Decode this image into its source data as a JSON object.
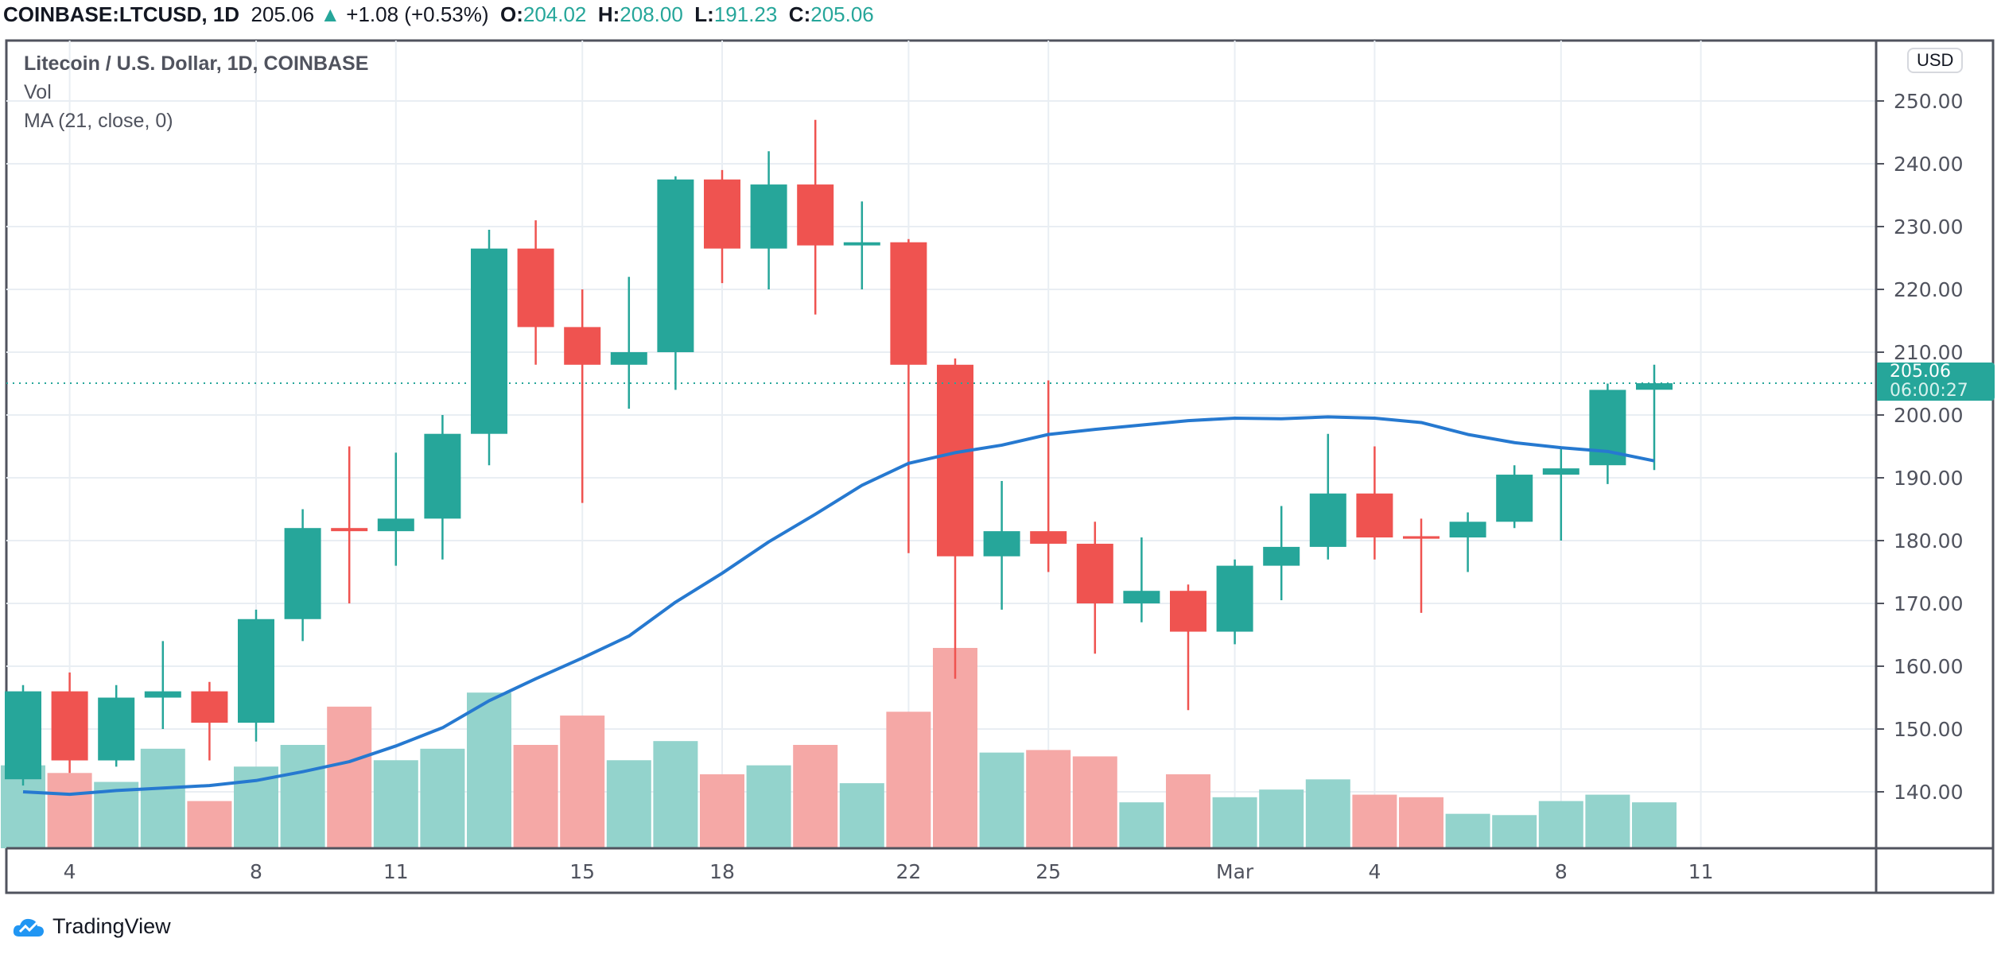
{
  "header": {
    "symbol": "COINBASE:LTCUSD, 1D",
    "last": "205.06",
    "change": "+1.08 (+0.53%)",
    "o_label": "O:",
    "o": "204.02",
    "h_label": "H:",
    "h": "208.00",
    "l_label": "L:",
    "l": "191.23",
    "c_label": "C:",
    "c": "205.06"
  },
  "legend": {
    "title": "Litecoin / U.S. Dollar, 1D, COINBASE",
    "vol": "Vol",
    "ma": "MA (21, close, 0)"
  },
  "currency": "USD",
  "price_tag": {
    "price": "205.06",
    "countdown": "06:00:27"
  },
  "branding": "TradingView",
  "colors": {
    "up": "#26a69a",
    "down": "#ef5350",
    "vol_up": "#93d3cc",
    "vol_down": "#f5a8a6",
    "ma": "#2679d0",
    "grid": "#e9eef3"
  },
  "chart_data": {
    "type": "candlestick",
    "title": "Litecoin / U.S. Dollar, 1D, COINBASE",
    "ylim": [
      132,
      254
    ],
    "yticks": [
      "250.00",
      "240.00",
      "230.00",
      "220.00",
      "210.00",
      "200.00",
      "190.00",
      "180.00",
      "170.00",
      "160.00",
      "150.00",
      "140.00"
    ],
    "xticks": [
      {
        "index": 1,
        "label": "4"
      },
      {
        "index": 5,
        "label": "8"
      },
      {
        "index": 8,
        "label": "11"
      },
      {
        "index": 12,
        "label": "15"
      },
      {
        "index": 15,
        "label": "18"
      },
      {
        "index": 19,
        "label": "22"
      },
      {
        "index": 22,
        "label": "25"
      },
      {
        "index": 26,
        "label": "Mar"
      },
      {
        "index": 29,
        "label": "4"
      },
      {
        "index": 33,
        "label": "8"
      },
      {
        "index": 36,
        "label": "11"
      }
    ],
    "dates": [
      "Feb 3",
      "Feb 4",
      "Feb 5",
      "Feb 6",
      "Feb 7",
      "Feb 8",
      "Feb 9",
      "Feb 10",
      "Feb 11",
      "Feb 12",
      "Feb 13",
      "Feb 14",
      "Feb 15",
      "Feb 16",
      "Feb 17",
      "Feb 18",
      "Feb 19",
      "Feb 20",
      "Feb 21",
      "Feb 22",
      "Feb 23",
      "Feb 24",
      "Feb 25",
      "Feb 26",
      "Feb 27",
      "Feb 28",
      "Mar 1",
      "Mar 2",
      "Mar 3",
      "Mar 4",
      "Mar 5",
      "Mar 6",
      "Mar 7",
      "Mar 8",
      "Mar 9",
      "Mar 10"
    ],
    "ohlc": [
      [
        142,
        157,
        141,
        156
      ],
      [
        156,
        159,
        143,
        145
      ],
      [
        145,
        157,
        144,
        155
      ],
      [
        155,
        164,
        150,
        156
      ],
      [
        156,
        157.5,
        145,
        151
      ],
      [
        151,
        169,
        148,
        167.5
      ],
      [
        167.5,
        185,
        164,
        182
      ],
      [
        182,
        195,
        170,
        181.5
      ],
      [
        181.5,
        194,
        176,
        183.5
      ],
      [
        183.5,
        200,
        177,
        197
      ],
      [
        197,
        229.5,
        192,
        226.5
      ],
      [
        226.5,
        231,
        208,
        214
      ],
      [
        214,
        220,
        186,
        208
      ],
      [
        208,
        222,
        201,
        210
      ],
      [
        210,
        238,
        204,
        237.5
      ],
      [
        237.5,
        239,
        221,
        226.5
      ],
      [
        226.5,
        242,
        220,
        236.7
      ],
      [
        236.7,
        247,
        216,
        227
      ],
      [
        227,
        234,
        220,
        227.5
      ],
      [
        227.5,
        228,
        178,
        208
      ],
      [
        208,
        209,
        158,
        177.5
      ],
      [
        177.5,
        189.5,
        169,
        181.5
      ],
      [
        181.5,
        205.5,
        175,
        179.5
      ],
      [
        179.5,
        183,
        162,
        170
      ],
      [
        170,
        180.5,
        167,
        172
      ],
      [
        172,
        173,
        153,
        165.5
      ],
      [
        165.5,
        177,
        163.5,
        176
      ],
      [
        176,
        185.5,
        170.5,
        179
      ],
      [
        179,
        197,
        177,
        187.5
      ],
      [
        187.5,
        195,
        177,
        180.5
      ],
      [
        180.7,
        183.5,
        168.5,
        180.3
      ],
      [
        180.5,
        184.5,
        175,
        183
      ],
      [
        183,
        192,
        182,
        190.5
      ],
      [
        190.5,
        195,
        180,
        191.5
      ],
      [
        192,
        205,
        189,
        204
      ],
      [
        204.02,
        208,
        191.23,
        205.06
      ]
    ],
    "volume_relative": [
      65,
      59,
      52,
      78,
      37,
      64,
      81,
      111,
      69,
      78,
      122,
      81,
      104,
      69,
      84,
      58,
      65,
      81,
      51,
      107,
      157,
      75,
      77,
      72,
      36,
      58,
      40,
      46,
      54,
      42,
      40,
      27,
      26,
      37,
      42,
      36
    ],
    "ma21": [
      140,
      139.6,
      140.2,
      140.6,
      141,
      141.8,
      143.2,
      144.8,
      147.3,
      150.2,
      154.5,
      158,
      161.3,
      164.8,
      170.2,
      174.8,
      179.8,
      184.2,
      188.8,
      192.3,
      194,
      195.2,
      196.9,
      197.7,
      198.4,
      199.1,
      199.5,
      199.4,
      199.7,
      199.5,
      198.8,
      196.9,
      195.6,
      194.8,
      194.2,
      192.7
    ],
    "last_price": 205.06
  }
}
